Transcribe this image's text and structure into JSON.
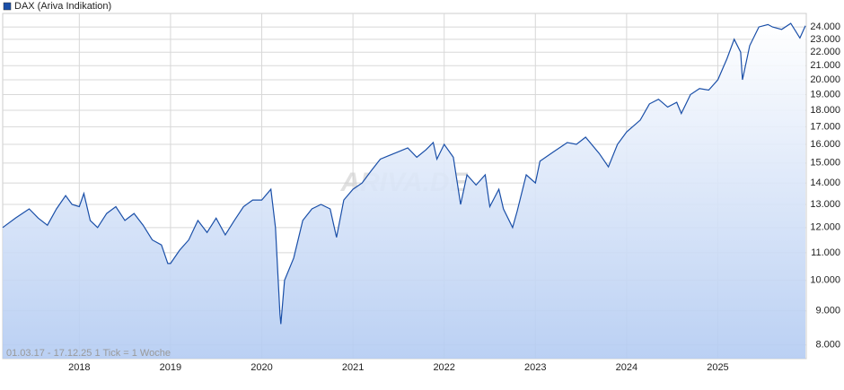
{
  "chart_data": {
    "type": "line",
    "legend": "DAX (Ariva Indikation)",
    "footer": "01.03.17 - 17.12.25   1 Tick = 1 Woche",
    "watermark": "ARIVA.DE",
    "color": "#1a4fa8",
    "log_scale": true,
    "grid": true,
    "x": [
      2017.16,
      2017.3,
      2017.45,
      2017.55,
      2017.65,
      2017.75,
      2017.85,
      2017.92,
      2018.0,
      2018.05,
      2018.12,
      2018.2,
      2018.3,
      2018.4,
      2018.5,
      2018.6,
      2018.7,
      2018.8,
      2018.9,
      2018.97,
      2019.0,
      2019.1,
      2019.2,
      2019.3,
      2019.4,
      2019.5,
      2019.6,
      2019.7,
      2019.8,
      2019.9,
      2020.0,
      2020.1,
      2020.15,
      2020.2,
      2020.21,
      2020.25,
      2020.35,
      2020.45,
      2020.55,
      2020.65,
      2020.75,
      2020.82,
      2020.9,
      2021.0,
      2021.1,
      2021.2,
      2021.3,
      2021.4,
      2021.5,
      2021.6,
      2021.7,
      2021.8,
      2021.88,
      2021.92,
      2022.0,
      2022.1,
      2022.18,
      2022.25,
      2022.35,
      2022.45,
      2022.5,
      2022.6,
      2022.65,
      2022.75,
      2022.8,
      2022.9,
      2023.0,
      2023.05,
      2023.2,
      2023.35,
      2023.45,
      2023.55,
      2023.7,
      2023.8,
      2023.9,
      2024.0,
      2024.15,
      2024.25,
      2024.35,
      2024.45,
      2024.55,
      2024.6,
      2024.7,
      2024.8,
      2024.9,
      2025.0,
      2025.1,
      2025.18,
      2025.25,
      2025.27,
      2025.35,
      2025.45,
      2025.55,
      2025.6,
      2025.7,
      2025.8,
      2025.85,
      2025.9,
      2025.96
    ],
    "values": [
      12000,
      12400,
      12800,
      12400,
      12100,
      12800,
      13400,
      13000,
      12900,
      13500,
      12300,
      12000,
      12600,
      12900,
      12300,
      12600,
      12100,
      11500,
      11300,
      10600,
      10600,
      11100,
      11500,
      12300,
      11800,
      12400,
      11700,
      12300,
      12900,
      13200,
      13200,
      13700,
      12000,
      8900,
      8600,
      10000,
      10800,
      12300,
      12800,
      13000,
      12800,
      11600,
      13200,
      13700,
      14000,
      14600,
      15200,
      15400,
      15600,
      15800,
      15300,
      15700,
      16100,
      15200,
      16000,
      15300,
      13000,
      14400,
      13900,
      14400,
      12900,
      13700,
      12800,
      12000,
      12700,
      14400,
      14000,
      15100,
      15600,
      16100,
      16000,
      16400,
      15500,
      14800,
      16000,
      16700,
      17400,
      18400,
      18700,
      18200,
      18500,
      17800,
      19000,
      19400,
      19300,
      20000,
      21500,
      23000,
      22000,
      20000,
      22500,
      24000,
      24200,
      24000,
      23800,
      24300,
      23700,
      23100,
      24100
    ],
    "xlim": [
      2017.16,
      2025.97
    ],
    "xticks": [
      2018,
      2019,
      2020,
      2021,
      2022,
      2023,
      2024,
      2025
    ],
    "ylim": [
      7630,
      25150
    ],
    "yticks": [
      {
        "value": 8000,
        "label": "8.000"
      },
      {
        "value": 9000,
        "label": "9.000"
      },
      {
        "value": 10000,
        "label": "10.000"
      },
      {
        "value": 11000,
        "label": "11.000"
      },
      {
        "value": 12000,
        "label": "12.000"
      },
      {
        "value": 13000,
        "label": "13.000"
      },
      {
        "value": 14000,
        "label": "14.000"
      },
      {
        "value": 15000,
        "label": "15.000"
      },
      {
        "value": 16000,
        "label": "16.000"
      },
      {
        "value": 17000,
        "label": "17.000"
      },
      {
        "value": 18000,
        "label": "18.000"
      },
      {
        "value": 19000,
        "label": "19.000"
      },
      {
        "value": 20000,
        "label": "20.000"
      },
      {
        "value": 21000,
        "label": "21.000"
      },
      {
        "value": 22000,
        "label": "22.000"
      },
      {
        "value": 23000,
        "label": "23.000"
      },
      {
        "value": 24000,
        "label": "24.000"
      }
    ]
  }
}
